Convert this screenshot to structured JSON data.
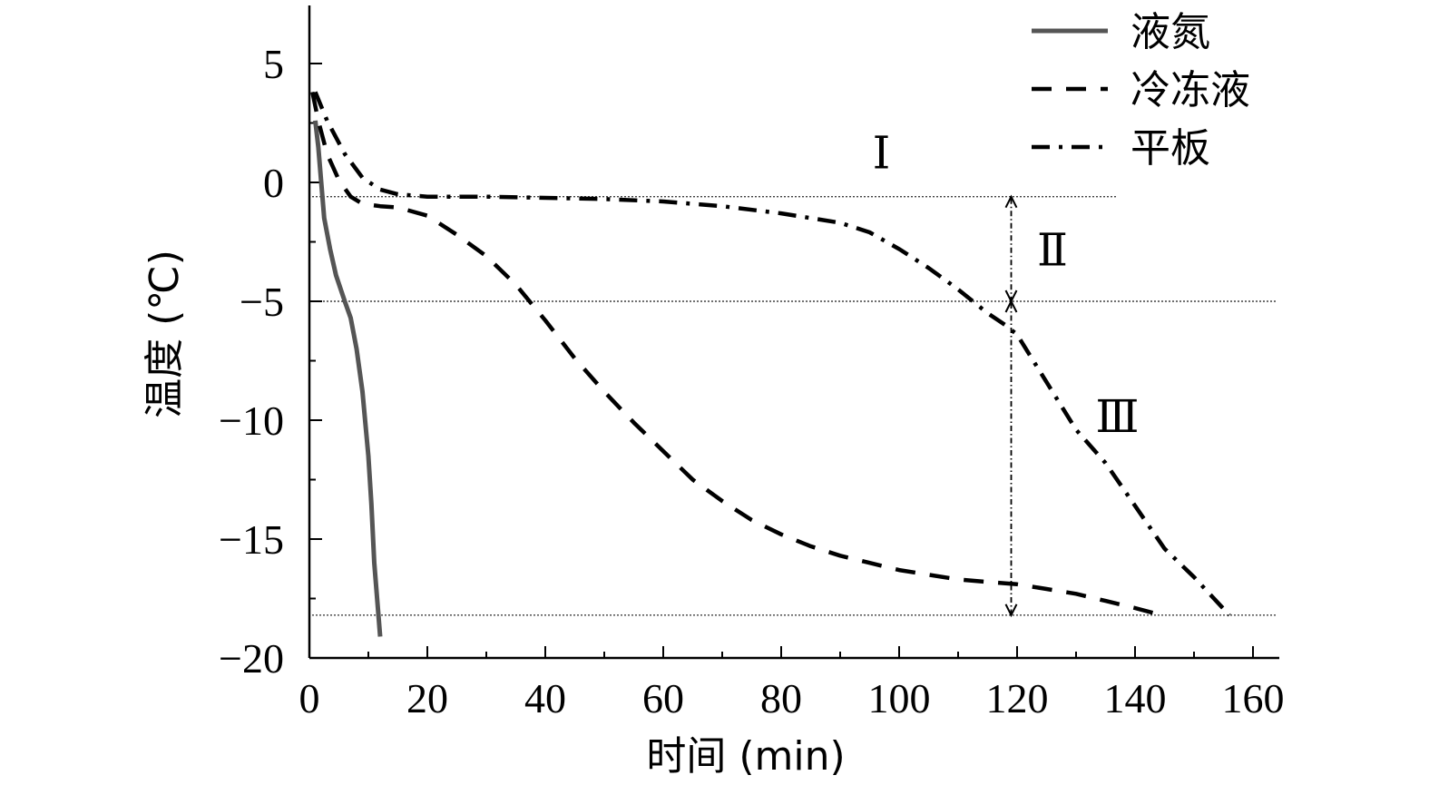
{
  "chart_data": {
    "type": "line",
    "title": "",
    "xlabel": "时间 (min)",
    "ylabel": "温度 (℃)",
    "xlim": [
      0,
      165
    ],
    "ylim": [
      -20,
      7.5
    ],
    "xticks": [
      0,
      20,
      40,
      60,
      80,
      100,
      120,
      140,
      160
    ],
    "yticks": [
      5,
      0,
      -5,
      -10,
      -15,
      -20
    ],
    "ytick_labels": [
      "5",
      "0",
      "−5",
      "−10",
      "−15",
      "−20"
    ],
    "grid": false,
    "legend_position": "top-right",
    "series": [
      {
        "name": "液氮",
        "style": "solid",
        "color": "#555555",
        "x": [
          1,
          1.5,
          2.5,
          3.5,
          4.5,
          6,
          7,
          8,
          9,
          10,
          10.5,
          11,
          12
        ],
        "y": [
          2.6,
          1.5,
          -1.5,
          -2.8,
          -3.9,
          -5.0,
          -5.7,
          -7.0,
          -8.8,
          -11.5,
          -13.5,
          -16.0,
          -19.1
        ]
      },
      {
        "name": "冷冻液",
        "style": "dashed",
        "color": "#000000",
        "x": [
          0.5,
          1.5,
          3,
          5,
          7,
          9,
          12,
          15,
          20,
          25,
          30,
          35,
          40,
          45,
          50,
          55,
          60,
          65,
          70,
          75,
          80,
          85,
          90,
          95,
          100,
          105,
          110,
          115,
          120,
          125,
          130,
          135,
          140,
          143
        ],
        "y": [
          3.8,
          2.6,
          1.2,
          0.1,
          -0.6,
          -0.9,
          -1.0,
          -1.05,
          -1.4,
          -2.2,
          -3.1,
          -4.3,
          -5.8,
          -7.4,
          -8.8,
          -10.1,
          -11.3,
          -12.5,
          -13.4,
          -14.2,
          -14.8,
          -15.3,
          -15.7,
          -16.0,
          -16.3,
          -16.5,
          -16.7,
          -16.8,
          -16.9,
          -17.1,
          -17.3,
          -17.6,
          -17.9,
          -18.1
        ]
      },
      {
        "name": "平板",
        "style": "dashdot",
        "color": "#000000",
        "x": [
          1,
          3,
          6,
          9,
          12,
          15,
          20,
          30,
          40,
          50,
          60,
          70,
          80,
          90,
          95,
          100,
          105,
          110,
          115,
          118,
          120,
          125,
          130,
          135,
          140,
          145,
          150,
          156
        ],
        "y": [
          3.8,
          2.6,
          1.2,
          0.2,
          -0.3,
          -0.5,
          -0.6,
          -0.6,
          -0.65,
          -0.7,
          -0.8,
          -1.0,
          -1.3,
          -1.7,
          -2.1,
          -2.8,
          -3.6,
          -4.5,
          -5.5,
          -6.0,
          -6.4,
          -8.4,
          -10.4,
          -11.8,
          -13.6,
          -15.4,
          -16.6,
          -18.2
        ]
      }
    ],
    "reference_lines": [
      {
        "y": -0.6,
        "x_from": 0.5,
        "x_to": 137
      },
      {
        "y": -5.0,
        "x_from": 0.5,
        "x_to": 164
      },
      {
        "y": -18.2,
        "x_from": 0.5,
        "x_to": 164
      }
    ],
    "arrow_x": 119,
    "arrows": [
      {
        "from": -0.6,
        "to": -5.0
      },
      {
        "from": -5.0,
        "to": -18.2
      }
    ],
    "annotations": [
      {
        "text": "Ⅰ",
        "x": 97,
        "y": 0.6
      },
      {
        "text": "Ⅱ",
        "x": 126,
        "y": -3.5
      },
      {
        "text": "Ⅲ",
        "x": 137,
        "y": -10.5
      }
    ]
  }
}
